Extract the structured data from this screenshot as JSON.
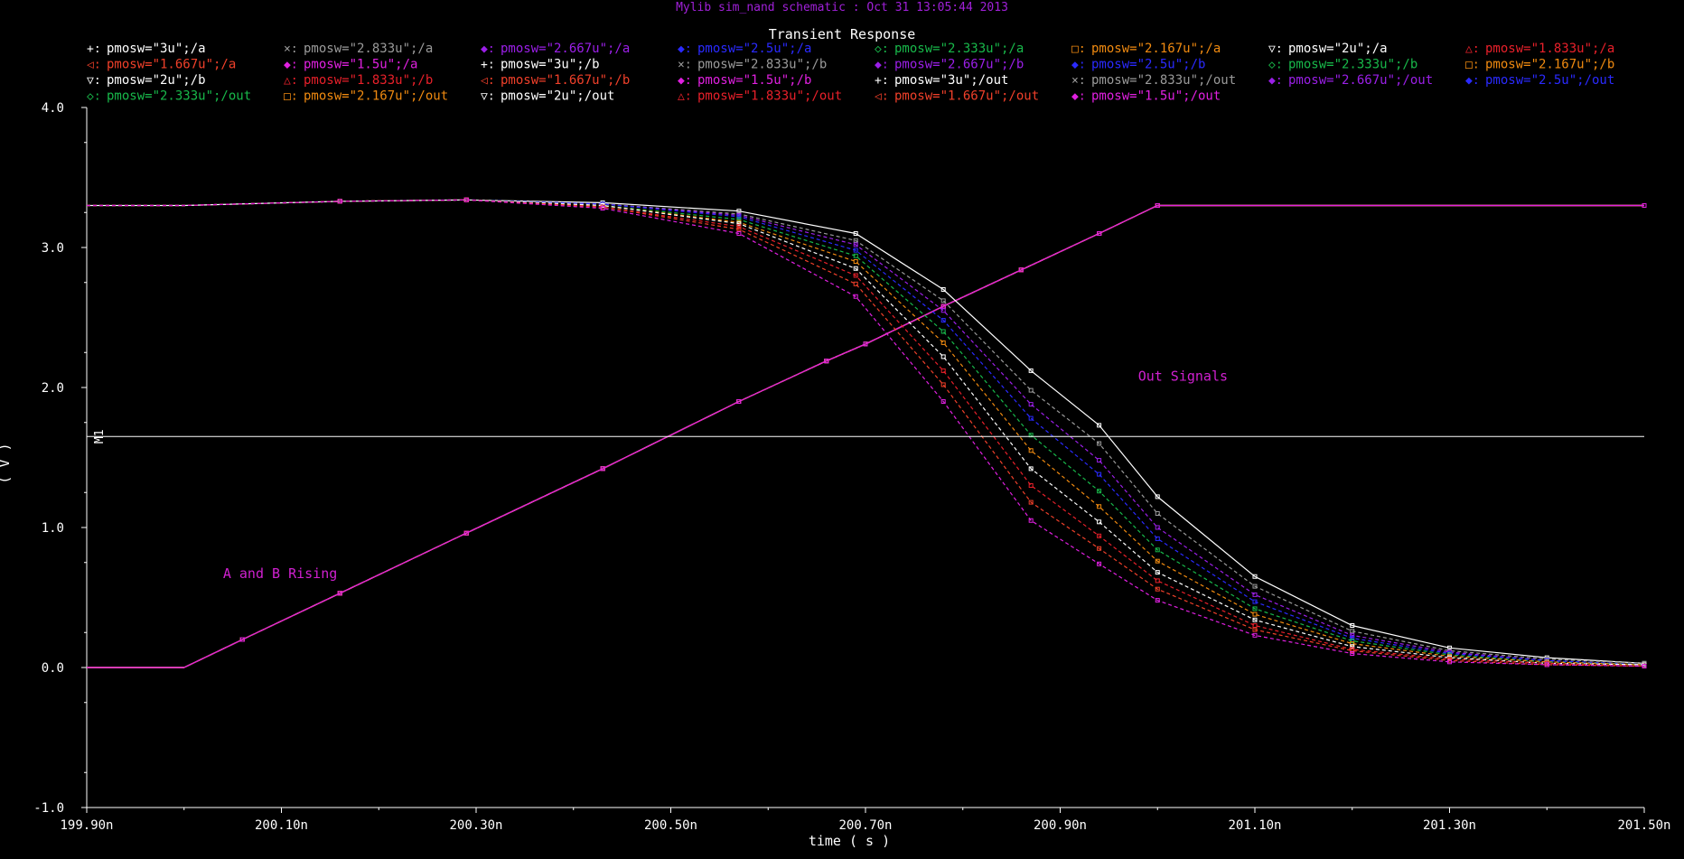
{
  "header": "Mylib sim_nand schematic : Oct 31 13:05:44 2013",
  "chart_data": {
    "type": "line",
    "title": "Transient Response",
    "xlabel": "time ( s )",
    "ylabel": "( V )",
    "xlim": [
      199.9,
      201.5
    ],
    "ylim": [
      -1.0,
      4.0
    ],
    "x_unit_suffix": "n",
    "x_ticks": [
      "199.90n",
      "200.10n",
      "200.30n",
      "200.50n",
      "200.70n",
      "200.90n",
      "201.10n",
      "201.30n",
      "201.50n"
    ],
    "x_tick_values": [
      199.9,
      200.1,
      200.3,
      200.5,
      200.7,
      200.9,
      201.1,
      201.3,
      201.5
    ],
    "y_ticks": [
      "-1.0",
      "0.0",
      "1.0",
      "2.0",
      "3.0",
      "4.0"
    ],
    "y_tick_values": [
      -1.0,
      0.0,
      1.0,
      2.0,
      3.0,
      4.0
    ],
    "grid": false,
    "legend_position": "top",
    "annotations": [
      {
        "text": "Out Signals",
        "x": 200.98,
        "y": 2.05,
        "color": "#d020d0"
      },
      {
        "text": "A and B Rising",
        "x": 200.04,
        "y": 0.64,
        "color": "#d020d0"
      }
    ],
    "marker": {
      "label": "M1",
      "y": 1.65,
      "color": "#ffffff"
    },
    "input_x": [
      199.9,
      200.0,
      200.06,
      200.16,
      200.29,
      200.43,
      200.57,
      200.66,
      200.7,
      200.78,
      200.86,
      200.94,
      201.0,
      201.5
    ],
    "input_y": [
      0.0,
      0.0,
      0.2,
      0.53,
      0.96,
      1.42,
      1.9,
      2.19,
      2.31,
      2.58,
      2.84,
      3.1,
      3.3,
      3.3
    ],
    "series": [
      {
        "name": "pmosw=\"3u\";/a",
        "color": "#ffffff",
        "marker": "+",
        "role": "input"
      },
      {
        "name": "pmosw=\"2.833u\";/a",
        "color": "#9a9a9a",
        "marker": "×",
        "role": "input"
      },
      {
        "name": "pmosw=\"2.667u\";/a",
        "color": "#9b1fe8",
        "marker": "◆",
        "role": "input"
      },
      {
        "name": "pmosw=\"2.5u\";/a",
        "color": "#2a2aff",
        "marker": "◆",
        "role": "input"
      },
      {
        "name": "pmosw=\"2.333u\";/a",
        "color": "#18b84a",
        "marker": "◇",
        "role": "input"
      },
      {
        "name": "pmosw=\"2.167u\";/a",
        "color": "#f08a10",
        "marker": "□",
        "role": "input"
      },
      {
        "name": "pmosw=\"2u\";/a",
        "color": "#ffffff",
        "marker": "▽",
        "role": "input"
      },
      {
        "name": "pmosw=\"1.833u\";/a",
        "color": "#e8202a",
        "marker": "△",
        "role": "input"
      },
      {
        "name": "pmosw=\"1.667u\";/a",
        "color": "#f0402a",
        "marker": "◁",
        "role": "input"
      },
      {
        "name": "pmosw=\"1.5u\";/a",
        "color": "#e020e0",
        "marker": "◆",
        "role": "input"
      },
      {
        "name": "pmosw=\"3u\";/b",
        "color": "#ffffff",
        "marker": "+",
        "role": "input"
      },
      {
        "name": "pmosw=\"2.833u\";/b",
        "color": "#9a9a9a",
        "marker": "×",
        "role": "input"
      },
      {
        "name": "pmosw=\"2.667u\";/b",
        "color": "#9b1fe8",
        "marker": "◆",
        "role": "input"
      },
      {
        "name": "pmosw=\"2.5u\";/b",
        "color": "#2a2aff",
        "marker": "◆",
        "role": "input"
      },
      {
        "name": "pmosw=\"2.333u\";/b",
        "color": "#18b84a",
        "marker": "◇",
        "role": "input"
      },
      {
        "name": "pmosw=\"2.167u\";/b",
        "color": "#f08a10",
        "marker": "□",
        "role": "input"
      },
      {
        "name": "pmosw=\"2u\";/b",
        "color": "#ffffff",
        "marker": "▽",
        "role": "input"
      },
      {
        "name": "pmosw=\"1.833u\";/b",
        "color": "#e8202a",
        "marker": "△",
        "role": "input"
      },
      {
        "name": "pmosw=\"1.667u\";/b",
        "color": "#f0402a",
        "marker": "◁",
        "role": "input"
      },
      {
        "name": "pmosw=\"1.5u\";/b",
        "color": "#e020e0",
        "marker": "◆",
        "role": "input"
      },
      {
        "name": "pmosw=\"3u\";/out",
        "color": "#ffffff",
        "marker": "+",
        "role": "output",
        "x": [
          199.9,
          200.0,
          200.16,
          200.29,
          200.43,
          200.57,
          200.69,
          200.78,
          200.87,
          200.94,
          201.0,
          201.1,
          201.2,
          201.3,
          201.4,
          201.5
        ],
        "y": [
          3.3,
          3.3,
          3.33,
          3.34,
          3.32,
          3.26,
          3.1,
          2.7,
          2.12,
          1.73,
          1.22,
          0.65,
          0.3,
          0.14,
          0.07,
          0.03
        ]
      },
      {
        "name": "pmosw=\"2.833u\";/out",
        "color": "#9a9a9a",
        "marker": "×",
        "role": "output",
        "x": [
          199.9,
          200.0,
          200.16,
          200.29,
          200.43,
          200.57,
          200.69,
          200.78,
          200.87,
          200.94,
          201.0,
          201.1,
          201.2,
          201.3,
          201.4,
          201.5
        ],
        "y": [
          3.3,
          3.3,
          3.33,
          3.34,
          3.31,
          3.24,
          3.05,
          2.62,
          1.98,
          1.6,
          1.1,
          0.58,
          0.26,
          0.12,
          0.06,
          0.03
        ]
      },
      {
        "name": "pmosw=\"2.667u\";/out",
        "color": "#9b1fe8",
        "marker": "◆",
        "role": "output",
        "x": [
          199.9,
          200.0,
          200.16,
          200.29,
          200.43,
          200.57,
          200.69,
          200.78,
          200.87,
          200.94,
          201.0,
          201.1,
          201.2,
          201.3,
          201.4,
          201.5
        ],
        "y": [
          3.3,
          3.3,
          3.33,
          3.34,
          3.31,
          3.23,
          3.02,
          2.55,
          1.88,
          1.48,
          1.0,
          0.52,
          0.23,
          0.11,
          0.05,
          0.02
        ]
      },
      {
        "name": "pmosw=\"2.5u\";/out",
        "color": "#2a2aff",
        "marker": "◆",
        "role": "output",
        "x": [
          199.9,
          200.0,
          200.16,
          200.29,
          200.43,
          200.57,
          200.69,
          200.78,
          200.87,
          200.94,
          201.0,
          201.1,
          201.2,
          201.3,
          201.4,
          201.5
        ],
        "y": [
          3.3,
          3.3,
          3.33,
          3.34,
          3.31,
          3.22,
          2.98,
          2.48,
          1.78,
          1.38,
          0.92,
          0.47,
          0.21,
          0.1,
          0.05,
          0.02
        ]
      },
      {
        "name": "pmosw=\"2.333u\";/out",
        "color": "#18b84a",
        "marker": "◇",
        "role": "output",
        "x": [
          199.9,
          200.0,
          200.16,
          200.29,
          200.43,
          200.57,
          200.69,
          200.78,
          200.87,
          200.94,
          201.0,
          201.1,
          201.2,
          201.3,
          201.4,
          201.5
        ],
        "y": [
          3.3,
          3.3,
          3.33,
          3.34,
          3.3,
          3.2,
          2.94,
          2.4,
          1.66,
          1.26,
          0.84,
          0.42,
          0.19,
          0.09,
          0.04,
          0.02
        ]
      },
      {
        "name": "pmosw=\"2.167u\";/out",
        "color": "#f08a10",
        "marker": "□",
        "role": "output",
        "x": [
          199.9,
          200.0,
          200.16,
          200.29,
          200.43,
          200.57,
          200.69,
          200.78,
          200.87,
          200.94,
          201.0,
          201.1,
          201.2,
          201.3,
          201.4,
          201.5
        ],
        "y": [
          3.3,
          3.3,
          3.33,
          3.34,
          3.3,
          3.18,
          2.9,
          2.32,
          1.55,
          1.15,
          0.76,
          0.38,
          0.17,
          0.08,
          0.04,
          0.02
        ]
      },
      {
        "name": "pmosw=\"2u\";/out",
        "color": "#ffffff",
        "marker": "▽",
        "role": "output",
        "x": [
          199.9,
          200.0,
          200.16,
          200.29,
          200.43,
          200.57,
          200.69,
          200.78,
          200.87,
          200.94,
          201.0,
          201.1,
          201.2,
          201.3,
          201.4,
          201.5
        ],
        "y": [
          3.3,
          3.3,
          3.33,
          3.34,
          3.3,
          3.17,
          2.85,
          2.22,
          1.42,
          1.04,
          0.68,
          0.34,
          0.15,
          0.07,
          0.03,
          0.02
        ]
      },
      {
        "name": "pmosw=\"1.833u\";/out",
        "color": "#e8202a",
        "marker": "△",
        "role": "output",
        "x": [
          199.9,
          200.0,
          200.16,
          200.29,
          200.43,
          200.57,
          200.69,
          200.78,
          200.87,
          200.94,
          201.0,
          201.1,
          201.2,
          201.3,
          201.4,
          201.5
        ],
        "y": [
          3.3,
          3.3,
          3.33,
          3.34,
          3.29,
          3.15,
          2.8,
          2.12,
          1.3,
          0.94,
          0.62,
          0.3,
          0.13,
          0.06,
          0.03,
          0.01
        ]
      },
      {
        "name": "pmosw=\"1.667u\";/out",
        "color": "#f0402a",
        "marker": "◁",
        "role": "output",
        "x": [
          199.9,
          200.0,
          200.16,
          200.29,
          200.43,
          200.57,
          200.69,
          200.78,
          200.87,
          200.94,
          201.0,
          201.1,
          201.2,
          201.3,
          201.4,
          201.5
        ],
        "y": [
          3.3,
          3.3,
          3.33,
          3.34,
          3.29,
          3.13,
          2.74,
          2.02,
          1.18,
          0.85,
          0.56,
          0.27,
          0.12,
          0.05,
          0.02,
          0.01
        ]
      },
      {
        "name": "pmosw=\"1.5u\";/out",
        "color": "#e020e0",
        "marker": "◆",
        "role": "output",
        "x": [
          199.9,
          200.0,
          200.16,
          200.29,
          200.43,
          200.57,
          200.69,
          200.78,
          200.87,
          200.94,
          201.0,
          201.1,
          201.2,
          201.3,
          201.4,
          201.5
        ],
        "y": [
          3.3,
          3.3,
          3.33,
          3.34,
          3.28,
          3.1,
          2.65,
          1.9,
          1.05,
          0.74,
          0.48,
          0.23,
          0.1,
          0.04,
          0.02,
          0.01
        ]
      }
    ]
  }
}
